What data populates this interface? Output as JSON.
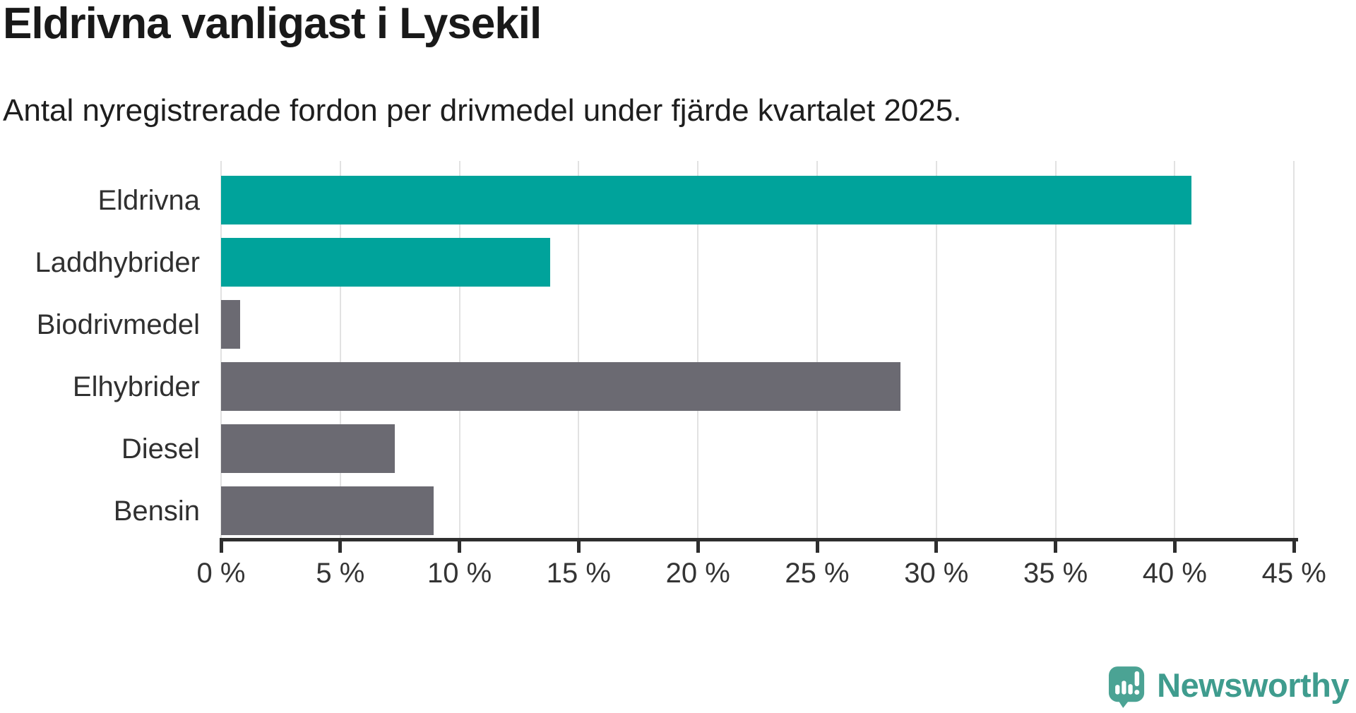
{
  "header": {
    "title": "Eldrivna vanligast i Lysekil",
    "subtitle": "Antal nyregistrerade fordon per drivmedel under fjärde kvartalet 2025."
  },
  "chart_data": {
    "type": "bar",
    "orientation": "horizontal",
    "title": "Eldrivna vanligast i Lysekil",
    "categories": [
      "Eldrivna",
      "Laddhybrider",
      "Biodrivmedel",
      "Elhybrider",
      "Diesel",
      "Bensin"
    ],
    "values": [
      40.7,
      13.8,
      0.8,
      28.5,
      7.3,
      8.9
    ],
    "unit": "%",
    "bar_colors": [
      "#00a39b",
      "#00a39b",
      "#6b6a72",
      "#6b6a72",
      "#6b6a72",
      "#6b6a72"
    ],
    "xlim": [
      0,
      45
    ],
    "x_ticks": [
      0,
      5,
      10,
      15,
      20,
      25,
      30,
      35,
      40,
      45
    ],
    "x_tick_labels": [
      "0 %",
      "5 %",
      "10 %",
      "15 %",
      "20 %",
      "25 %",
      "30 %",
      "35 %",
      "40 %",
      "45 %"
    ],
    "grid": "vertical-gridlines",
    "legend": "none",
    "xlabel": "",
    "ylabel": ""
  },
  "colors": {
    "highlight_teal": "#00a39b",
    "neutral_gray": "#6b6a72",
    "gridline": "#e2e2e2",
    "axis": "#2e2e2e",
    "logo_teal": "#4ba394",
    "logo_text_teal": "#3f9c8e"
  },
  "footer": {
    "brand": "Newsworthy"
  }
}
